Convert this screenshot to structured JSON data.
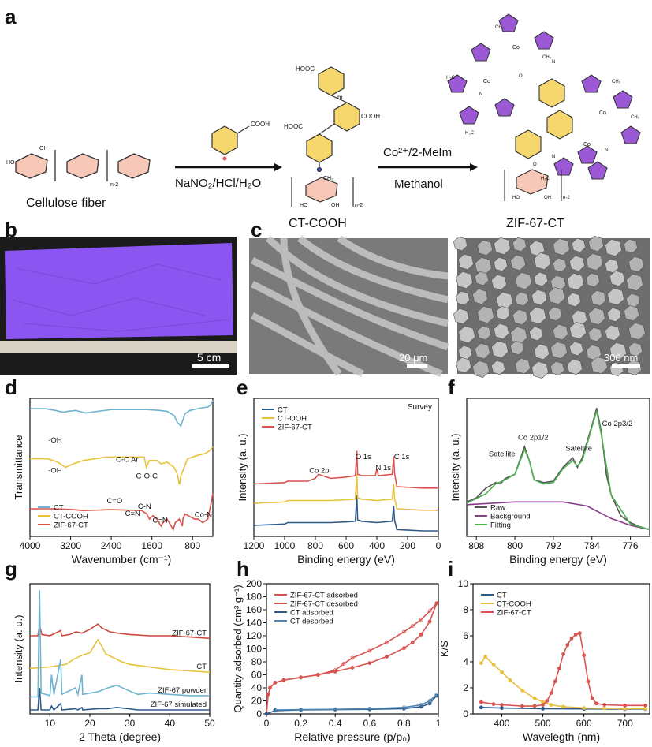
{
  "panels": {
    "a": {
      "label": "a",
      "cellulose_caption": "Cellulose fiber",
      "step1_reagent": "NaNO₂/HCl/H₂O",
      "ct_cooh_caption": "CT-COOH",
      "step2_reagent_top": "Co²⁺/2-MeIm",
      "step2_reagent_bottom": "Methanol",
      "zif_caption": "ZIF-67-CT",
      "group_cooh": "COOH",
      "group_hooc": "HOOC",
      "repeat_n2": "n-2",
      "repeat_m": "m",
      "atom_co": "Co",
      "atom_n": "N",
      "group_ch3": "CH₃",
      "group_h3c": "H₃C",
      "ring_oh": "OH",
      "ring_ho": "HO",
      "ring_ch2": "CH₂",
      "ring_h2c": "H₂C",
      "ring_o": "O"
    },
    "b": {
      "label": "b",
      "scale_bar": "5 cm",
      "paper_color": "#8a55f0"
    },
    "c": {
      "label": "c",
      "scale_left": "20 μm",
      "scale_right": "300 nm"
    },
    "d": {
      "label": "d"
    },
    "e": {
      "label": "e"
    },
    "f": {
      "label": "f"
    },
    "g": {
      "label": "g"
    },
    "h": {
      "label": "h"
    },
    "i": {
      "label": "i"
    }
  },
  "chart_data": [
    {
      "panel": "d",
      "type": "line",
      "xlabel": "Wavenumber (cm⁻¹)",
      "ylabel": "Transmittance",
      "xlim": [
        4000,
        400
      ],
      "xticks": [
        4000,
        3200,
        2400,
        1600,
        800
      ],
      "legend_position": "bottom-left",
      "series": [
        {
          "name": "CT",
          "color": "#6fb4cf",
          "x": [
            4000,
            3700,
            3500,
            3350,
            3250,
            3100,
            2900,
            2400,
            1700,
            1450,
            1300,
            1160,
            1100,
            1060,
            1030,
            950,
            850,
            700,
            600,
            500,
            450,
            400
          ],
          "y": [
            0.94,
            0.94,
            0.93,
            0.92,
            0.925,
            0.93,
            0.915,
            0.935,
            0.935,
            0.93,
            0.925,
            0.9,
            0.86,
            0.85,
            0.84,
            0.91,
            0.93,
            0.94,
            0.945,
            0.95,
            0.96,
            0.99
          ]
        },
        {
          "name": "CT-COOH",
          "color": "#e8c23c",
          "x": [
            4000,
            3650,
            3450,
            3300,
            3150,
            2950,
            2500,
            1750,
            1710,
            1650,
            1500,
            1420,
            1300,
            1160,
            1100,
            1060,
            1030,
            900,
            700,
            550,
            450,
            400
          ],
          "y": [
            0.65,
            0.65,
            0.63,
            0.6,
            0.62,
            0.64,
            0.66,
            0.66,
            0.6,
            0.64,
            0.64,
            0.62,
            0.63,
            0.6,
            0.56,
            0.5,
            0.55,
            0.65,
            0.67,
            0.68,
            0.7,
            0.72
          ]
        },
        {
          "name": "ZIF-67-CT",
          "color": "#d9534f",
          "x": [
            4000,
            3500,
            3150,
            2950,
            2400,
            1800,
            1700,
            1650,
            1580,
            1500,
            1420,
            1380,
            1300,
            1180,
            1140,
            1060,
            1000,
            990,
            950,
            760,
            690,
            600,
            500,
            430,
            400
          ],
          "y": [
            0.36,
            0.36,
            0.355,
            0.35,
            0.355,
            0.35,
            0.33,
            0.3,
            0.32,
            0.3,
            0.26,
            0.28,
            0.3,
            0.24,
            0.28,
            0.3,
            0.26,
            0.3,
            0.33,
            0.3,
            0.3,
            0.28,
            0.3,
            0.4,
            0.45
          ]
        }
      ],
      "annotations": [
        "-OH",
        "-OH",
        "C-C Ar",
        "C=O",
        "C-O-C",
        "C=N",
        "C-N",
        "C=N",
        "Co-N"
      ]
    },
    {
      "panel": "e",
      "type": "line",
      "title": "Survey",
      "xlabel": "Binding energy (eV)",
      "ylabel": "Intensity (a. u.)",
      "xlim": [
        1200,
        0
      ],
      "xticks": [
        1200,
        1000,
        800,
        600,
        400,
        200,
        0
      ],
      "legend_position": "top-left",
      "series": [
        {
          "name": "CT",
          "color": "#2e5a88",
          "x": [
            1200,
            1000,
            980,
            800,
            700,
            600,
            540,
            530,
            525,
            500,
            400,
            300,
            290,
            285,
            270,
            100,
            0
          ],
          "y": [
            0.08,
            0.09,
            0.1,
            0.1,
            0.1,
            0.105,
            0.11,
            0.3,
            0.12,
            0.11,
            0.1,
            0.11,
            0.22,
            0.12,
            0.05,
            0.04,
            0.04
          ]
        },
        {
          "name": "CT-OOH",
          "color": "#e8c23c",
          "x": [
            1200,
            1000,
            980,
            800,
            700,
            600,
            540,
            530,
            525,
            500,
            400,
            300,
            290,
            285,
            270,
            100,
            0
          ],
          "y": [
            0.24,
            0.25,
            0.26,
            0.26,
            0.26,
            0.265,
            0.27,
            0.45,
            0.28,
            0.27,
            0.26,
            0.27,
            0.38,
            0.28,
            0.2,
            0.19,
            0.19
          ]
        },
        {
          "name": "ZIF-67-CT",
          "color": "#d9534f",
          "x": [
            1200,
            1000,
            980,
            850,
            800,
            780,
            700,
            600,
            540,
            530,
            525,
            500,
            410,
            400,
            390,
            300,
            290,
            285,
            270,
            100,
            0
          ],
          "y": [
            0.38,
            0.39,
            0.4,
            0.4,
            0.42,
            0.45,
            0.42,
            0.43,
            0.44,
            0.62,
            0.45,
            0.44,
            0.44,
            0.49,
            0.44,
            0.45,
            0.58,
            0.46,
            0.36,
            0.35,
            0.35
          ]
        }
      ],
      "annotations": [
        "Co 2p",
        "O 1s",
        "N 1s",
        "C 1s"
      ]
    },
    {
      "panel": "f",
      "type": "line",
      "xlabel": "Binding energy (eV)",
      "ylabel": "Intensity (a. u.)",
      "xlim": [
        810,
        772
      ],
      "xticks": [
        808,
        800,
        792,
        784,
        776
      ],
      "legend_position": "bottom-left",
      "series": [
        {
          "name": "Raw",
          "color": "#555555",
          "x": [
            810,
            808,
            806,
            804,
            803,
            802,
            800,
            798,
            797,
            796,
            794,
            792,
            790,
            788,
            787,
            786,
            784,
            783,
            782,
            781,
            780,
            778,
            776,
            774,
            772
          ],
          "y": [
            0.3,
            0.33,
            0.4,
            0.44,
            0.43,
            0.47,
            0.5,
            0.7,
            0.6,
            0.46,
            0.44,
            0.45,
            0.55,
            0.62,
            0.55,
            0.62,
            0.85,
            0.98,
            0.8,
            0.5,
            0.35,
            0.2,
            0.15,
            0.12,
            0.1
          ]
        },
        {
          "name": "Background",
          "color": "#8b3a8b",
          "x": [
            810,
            800,
            790,
            785,
            780,
            776,
            772
          ],
          "y": [
            0.28,
            0.3,
            0.3,
            0.27,
            0.18,
            0.13,
            0.1
          ]
        },
        {
          "name": "Fitting",
          "color": "#4caf50",
          "x": [
            810,
            806,
            804,
            802,
            800,
            798,
            797,
            796,
            794,
            792,
            790,
            788,
            787,
            786,
            784,
            783,
            782,
            780,
            776,
            772
          ],
          "y": [
            0.29,
            0.36,
            0.43,
            0.46,
            0.5,
            0.68,
            0.6,
            0.46,
            0.43,
            0.44,
            0.54,
            0.6,
            0.56,
            0.6,
            0.84,
            0.96,
            0.78,
            0.35,
            0.14,
            0.1
          ]
        }
      ],
      "annotations": [
        "Satellite",
        "Co 2p1/2",
        "Satellite",
        "Co 2p3/2"
      ]
    },
    {
      "panel": "g",
      "type": "line",
      "xlabel": "2 Theta (degree)",
      "ylabel": "Intensity (a. u.)",
      "xlim": [
        5,
        50
      ],
      "xticks": [
        10,
        20,
        30,
        40,
        50
      ],
      "series": [
        {
          "name": "ZIF-67-CT",
          "color": "#c9483d",
          "x": [
            5,
            7,
            7.4,
            8,
            10,
            12.7,
            13,
            15,
            16.5,
            18,
            20,
            22,
            23,
            25,
            27,
            30,
            35,
            40,
            45,
            50
          ],
          "y": [
            0.6,
            0.6,
            0.68,
            0.61,
            0.6,
            0.64,
            0.6,
            0.61,
            0.63,
            0.62,
            0.65,
            0.69,
            0.66,
            0.63,
            0.62,
            0.61,
            0.6,
            0.6,
            0.59,
            0.58
          ]
        },
        {
          "name": "CT",
          "color": "#e8c23c",
          "x": [
            5,
            10,
            14,
            16,
            18,
            20,
            21,
            22,
            23,
            24,
            26,
            28,
            30,
            35,
            40,
            45,
            50
          ],
          "y": [
            0.35,
            0.36,
            0.38,
            0.42,
            0.45,
            0.47,
            0.52,
            0.57,
            0.52,
            0.46,
            0.43,
            0.4,
            0.38,
            0.36,
            0.34,
            0.33,
            0.32
          ]
        },
        {
          "name": "ZIF-67 powder",
          "color": "#6fb4cf",
          "x": [
            5,
            7,
            7.4,
            7.8,
            10,
            10.4,
            11,
            12.7,
            13,
            16.4,
            17,
            18,
            18.2,
            22,
            24.5,
            26.7,
            29.6,
            32,
            35,
            40,
            45,
            50
          ],
          "y": [
            0.13,
            0.13,
            0.95,
            0.16,
            0.14,
            0.3,
            0.15,
            0.42,
            0.15,
            0.2,
            0.15,
            0.3,
            0.15,
            0.17,
            0.2,
            0.22,
            0.18,
            0.15,
            0.16,
            0.15,
            0.14,
            0.14
          ]
        },
        {
          "name": "ZIF-67 simulated",
          "color": "#2e5a88",
          "x": [
            5,
            7,
            7.4,
            7.8,
            10,
            10.4,
            11,
            12.7,
            13,
            16.4,
            17,
            18,
            18.2,
            22,
            24.5,
            26.7,
            29.6,
            32,
            35,
            40,
            45,
            50
          ],
          "y": [
            0.03,
            0.03,
            0.2,
            0.03,
            0.03,
            0.06,
            0.03,
            0.08,
            0.03,
            0.04,
            0.03,
            0.05,
            0.03,
            0.04,
            0.04,
            0.05,
            0.04,
            0.03,
            0.03,
            0.03,
            0.03,
            0.03
          ]
        }
      ]
    },
    {
      "panel": "h",
      "type": "line",
      "xlabel": "Relative pressure (p/p₀)",
      "ylabel": "Quantity adsorbed (cm³ g⁻¹)",
      "xlim": [
        0,
        1.0
      ],
      "ylim": [
        0,
        200
      ],
      "xticks": [
        0.0,
        0.2,
        0.4,
        0.6,
        0.8,
        1.0
      ],
      "yticks": [
        0,
        20,
        40,
        60,
        80,
        100,
        120,
        140,
        160,
        180,
        200
      ],
      "legend_position": "top-left",
      "series": [
        {
          "name": "ZIF-67-CT adsorbed",
          "color": "#d9534f",
          "x": [
            0.0,
            0.01,
            0.02,
            0.05,
            0.1,
            0.2,
            0.3,
            0.4,
            0.5,
            0.6,
            0.7,
            0.8,
            0.85,
            0.9,
            0.95,
            0.99
          ],
          "y": [
            0,
            30,
            40,
            48,
            52,
            56,
            60,
            65,
            71,
            78,
            88,
            101,
            110,
            122,
            142,
            170
          ]
        },
        {
          "name": "ZIF-67-CT desorbed",
          "color": "#d9534f",
          "x": [
            0.99,
            0.95,
            0.9,
            0.85,
            0.8,
            0.7,
            0.6,
            0.5,
            0.45,
            0.4,
            0.3,
            0.2,
            0.1,
            0.05
          ],
          "y": [
            170,
            158,
            145,
            135,
            126,
            110,
            97,
            86,
            77,
            67,
            60,
            56,
            52,
            48
          ]
        },
        {
          "name": "CT adsorbed",
          "color": "#2e5a88",
          "x": [
            0.0,
            0.05,
            0.2,
            0.4,
            0.6,
            0.8,
            0.9,
            0.95,
            0.99
          ],
          "y": [
            0,
            5,
            6,
            6.5,
            7,
            8,
            11,
            16,
            28
          ]
        },
        {
          "name": "CT desorbed",
          "color": "#4f86b3",
          "x": [
            0.99,
            0.95,
            0.9,
            0.8,
            0.6,
            0.4,
            0.2,
            0.05
          ],
          "y": [
            30,
            20,
            14,
            10,
            8,
            7,
            6.5,
            6
          ]
        }
      ]
    },
    {
      "panel": "i",
      "type": "line",
      "xlabel": "Wavelegth (nm)",
      "ylabel": "K/S",
      "xlim": [
        330,
        760
      ],
      "ylim": [
        0,
        10
      ],
      "xticks": [
        400,
        500,
        600,
        700
      ],
      "yticks": [
        0,
        2,
        4,
        6,
        8,
        10
      ],
      "legend_position": "top-left",
      "series": [
        {
          "name": "CT",
          "color": "#2e5a88",
          "x": [
            350,
            400,
            500,
            600,
            700,
            750
          ],
          "y": [
            0.5,
            0.45,
            0.4,
            0.38,
            0.37,
            0.37
          ]
        },
        {
          "name": "CT-COOH",
          "color": "#e8c23c",
          "x": [
            350,
            360,
            380,
            400,
            420,
            450,
            480,
            500,
            520,
            550,
            600,
            650,
            700,
            750
          ],
          "y": [
            3.9,
            4.4,
            3.8,
            3.2,
            2.6,
            1.8,
            1.2,
            0.9,
            0.7,
            0.55,
            0.45,
            0.42,
            0.4,
            0.4
          ]
        },
        {
          "name": "ZIF-67-CT",
          "color": "#d9534f",
          "x": [
            350,
            380,
            400,
            450,
            480,
            500,
            510,
            520,
            530,
            540,
            550,
            560,
            570,
            580,
            590,
            600,
            610,
            620,
            630,
            650,
            700,
            750
          ],
          "y": [
            0.9,
            0.75,
            0.7,
            0.6,
            0.6,
            0.7,
            1.0,
            1.6,
            2.5,
            3.5,
            4.6,
            5.3,
            5.8,
            6.1,
            6.2,
            4.5,
            2.5,
            1.2,
            0.8,
            0.7,
            0.65,
            0.65
          ]
        }
      ]
    }
  ]
}
